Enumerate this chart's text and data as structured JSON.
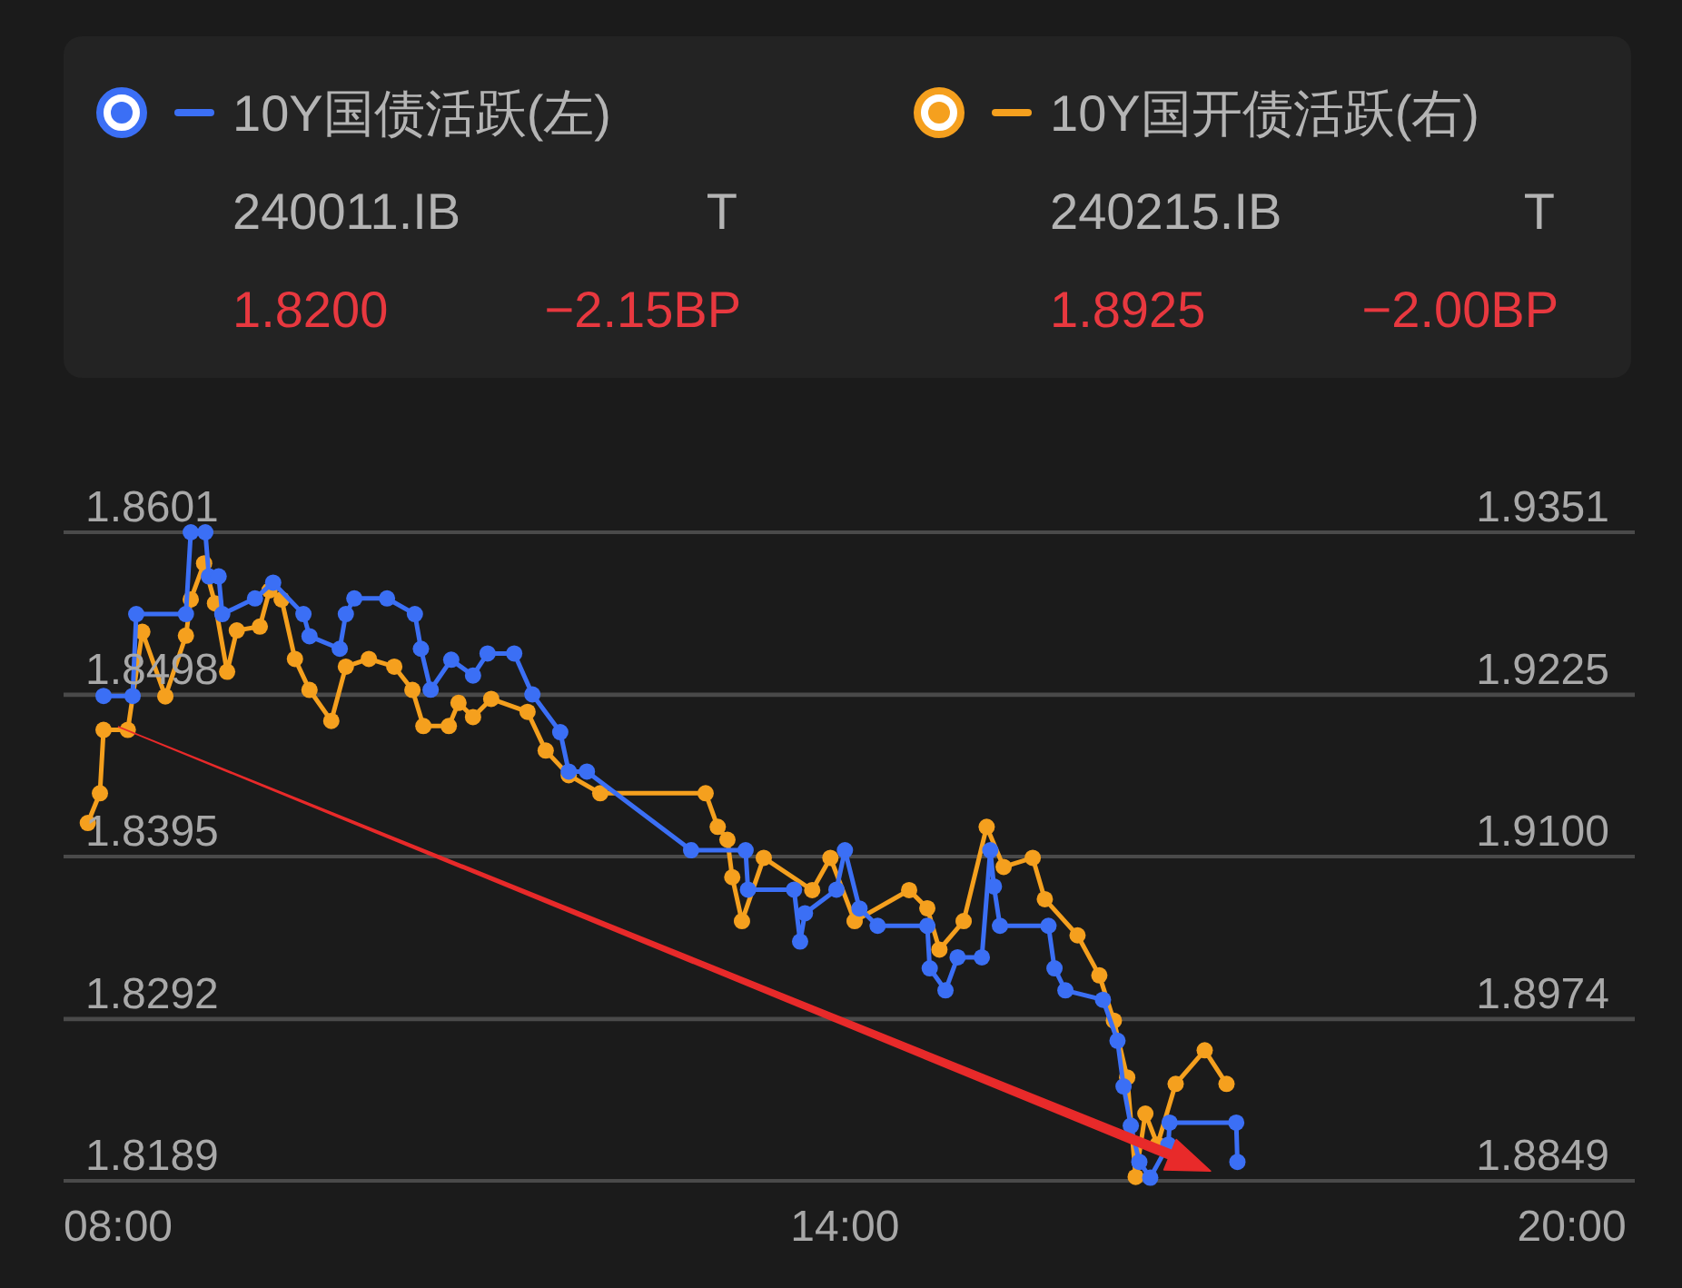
{
  "chart_data": {
    "type": "line",
    "series": [
      {
        "name": "10Y国债活跃(左)",
        "color": "#3b6ff5",
        "axis": "y",
        "x": [
          7.88,
          8.12,
          8.15,
          8.56,
          8.6,
          8.72,
          8.75,
          8.83,
          8.86,
          9.13,
          9.28,
          9.53,
          9.58,
          9.83,
          9.88,
          9.95,
          10.22,
          10.45,
          10.5,
          10.58,
          10.75,
          10.93,
          11.05,
          11.27,
          11.42,
          11.65,
          11.72,
          11.87,
          12.73,
          13.18,
          13.2,
          13.58,
          13.63,
          13.67,
          13.93,
          14.0,
          14.12,
          14.27,
          14.68,
          14.7,
          14.83,
          14.93,
          15.13,
          15.2,
          15.23,
          15.28,
          15.68,
          15.73,
          15.82,
          16.13,
          16.25,
          16.3,
          16.36,
          16.43,
          16.52,
          16.67,
          16.68,
          17.23,
          17.24
        ],
        "values": [
          1.8497,
          1.8497,
          1.8549,
          1.8549,
          1.8601,
          1.8601,
          1.8573,
          1.8573,
          1.8549,
          1.8559,
          1.8569,
          1.8549,
          1.8535,
          1.8527,
          1.8549,
          1.8559,
          1.8559,
          1.8549,
          1.8527,
          1.8501,
          1.852,
          1.851,
          1.8524,
          1.8524,
          1.8498,
          1.8474,
          1.8449,
          1.8449,
          1.8399,
          1.8399,
          1.8374,
          1.8374,
          1.8341,
          1.8359,
          1.8374,
          1.8399,
          1.8362,
          1.8351,
          1.8351,
          1.8324,
          1.831,
          1.8331,
          1.8331,
          1.8399,
          1.8376,
          1.8351,
          1.8351,
          1.8324,
          1.831,
          1.8304,
          1.8278,
          1.8249,
          1.8224,
          1.8201,
          1.8191,
          1.8212,
          1.8226,
          1.8226,
          1.8201
        ]
      },
      {
        "name": "10Y国开债活跃(右)",
        "color": "#f5a01e",
        "axis": "y2",
        "x": [
          7.75,
          7.85,
          7.88,
          8.08,
          8.2,
          8.39,
          8.56,
          8.6,
          8.71,
          8.8,
          8.9,
          8.98,
          9.17,
          9.25,
          9.35,
          9.46,
          9.58,
          9.76,
          9.88,
          10.07,
          10.28,
          10.43,
          10.52,
          10.73,
          10.81,
          10.93,
          11.08,
          11.38,
          11.53,
          11.72,
          11.98,
          12.85,
          12.95,
          13.03,
          13.07,
          13.15,
          13.33,
          13.73,
          13.88,
          14.08,
          14.53,
          14.68,
          14.78,
          14.98,
          15.17,
          15.31,
          15.55,
          15.65,
          15.92,
          16.1,
          16.22,
          16.33,
          16.4,
          16.48,
          16.58,
          16.73,
          16.97,
          17.15
        ],
        "values": [
          1.9126,
          1.9149,
          1.9198,
          1.9198,
          1.9274,
          1.9224,
          1.9271,
          1.9299,
          1.9327,
          1.9296,
          1.9243,
          1.9275,
          1.9278,
          1.9306,
          1.9299,
          1.9253,
          1.9229,
          1.9205,
          1.9247,
          1.9253,
          1.9247,
          1.9229,
          1.9201,
          1.9201,
          1.9219,
          1.9208,
          1.9222,
          1.9212,
          1.9182,
          1.9163,
          1.9149,
          1.9149,
          1.9123,
          1.9113,
          1.9084,
          1.905,
          1.9099,
          1.9074,
          1.9099,
          1.905,
          1.9074,
          1.906,
          1.9028,
          1.905,
          1.9123,
          1.9092,
          1.9099,
          1.9067,
          1.9039,
          1.9008,
          1.8973,
          1.8929,
          1.8852,
          1.8901,
          1.8877,
          1.8924,
          1.895,
          1.8924
        ]
      }
    ],
    "xlim": [
      7.55,
      20.52
    ],
    "xticks": [
      {
        "value": 8,
        "label": "08:00"
      },
      {
        "value": 14,
        "label": "14:00"
      },
      {
        "value": 20,
        "label": "20:00"
      }
    ],
    "ylim": [
      1.8189,
      1.8601
    ],
    "yticks": [
      1.8189,
      1.8292,
      1.8395,
      1.8498,
      1.8601
    ],
    "y2lim": [
      1.8849,
      1.9351
    ],
    "y2ticks": [
      1.8849,
      1.8974,
      {
        "value": 1.91,
        "label": "1.9100"
      },
      1.9225,
      1.9351
    ],
    "grid": "y",
    "legend": "top",
    "marker": "circle",
    "annotations": [
      "240011.IB",
      "T",
      "1.8200",
      "−2.15BP",
      "240215.IB",
      "T",
      "1.8925",
      "−2.00BP"
    ]
  }
}
